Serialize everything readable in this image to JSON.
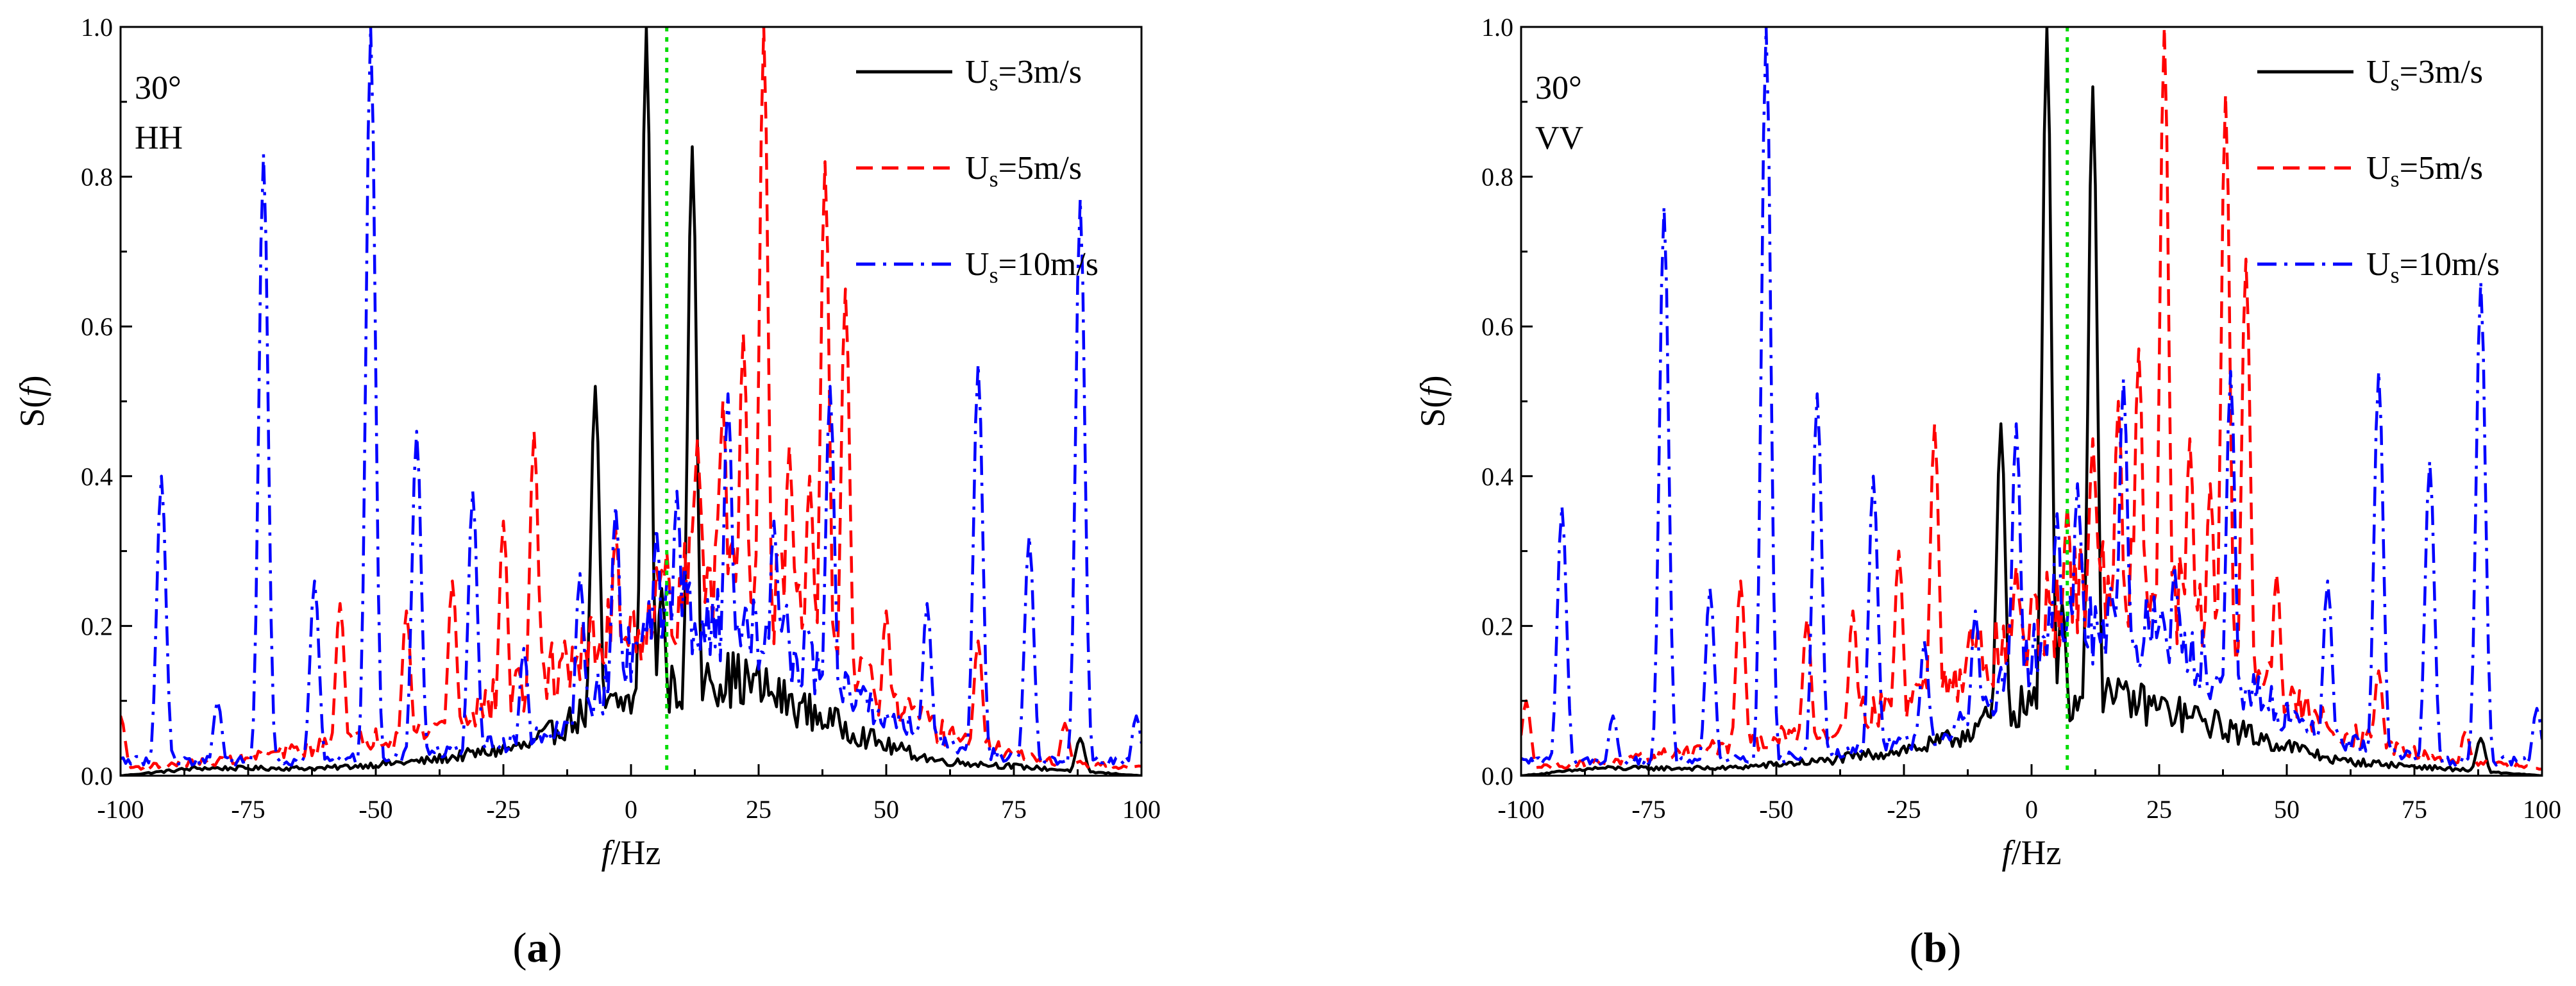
{
  "figure": {
    "panels": [
      {
        "label_open": "(",
        "label_letter": "a",
        "label_close": ")",
        "angle": "30°",
        "polarization": "HH"
      },
      {
        "label_open": "(",
        "label_letter": "b",
        "label_close": ")",
        "angle": "30°",
        "polarization": "VV"
      }
    ]
  },
  "chart_data": [
    {
      "type": "line",
      "title": "",
      "xlabel_italic": "f",
      "xlabel_rest": "/Hz",
      "ylabel_pre": "S(",
      "ylabel_italic": "f",
      "ylabel_post": ")",
      "xlim": [
        -100,
        100
      ],
      "ylim": [
        0,
        1.0
      ],
      "xticks": [
        -100,
        -75,
        -50,
        -25,
        0,
        25,
        50,
        75,
        100
      ],
      "yticks": [
        0.0,
        0.2,
        0.4,
        0.6,
        0.8,
        1.0
      ],
      "ytick_labels": [
        "0.0",
        "0.2",
        "0.4",
        "0.6",
        "0.8",
        "1.0"
      ],
      "legend_position": "top-right",
      "annotations": [
        "30°",
        "HH"
      ],
      "reference_line": {
        "x": 7,
        "color": "#00dd00",
        "style": "dotted"
      },
      "series": [
        {
          "name_main": "U",
          "name_sub": "s",
          "name_rest": "=3m/s",
          "color": "#000000",
          "style": "solid",
          "peaks": [
            [
              -7,
              0.52
            ],
            [
              3,
              1.0
            ],
            [
              6,
              0.25
            ],
            [
              12,
              0.84
            ],
            [
              15,
              0.15
            ],
            [
              88,
              0.05
            ]
          ],
          "baseline": [
            [
              -100,
              0.0
            ],
            [
              -85,
              0.01
            ],
            [
              -60,
              0.01
            ],
            [
              -40,
              0.02
            ],
            [
              -20,
              0.04
            ],
            [
              -15,
              0.06
            ],
            [
              -10,
              0.08
            ],
            [
              -5,
              0.09
            ],
            [
              0,
              0.1
            ],
            [
              10,
              0.12
            ],
            [
              20,
              0.13
            ],
            [
              25,
              0.12
            ],
            [
              30,
              0.1
            ],
            [
              40,
              0.07
            ],
            [
              50,
              0.04
            ],
            [
              60,
              0.02
            ],
            [
              70,
              0.015
            ],
            [
              80,
              0.01
            ],
            [
              100,
              0.0
            ]
          ]
        },
        {
          "name_main": "U",
          "name_sub": "s",
          "name_rest": "=5m/s",
          "color": "#ff0000",
          "style": "dashed",
          "peaks": [
            [
              -100,
              0.08
            ],
            [
              -57,
              0.23
            ],
            [
              -44,
              0.22
            ],
            [
              -35,
              0.26
            ],
            [
              -25,
              0.34
            ],
            [
              -19,
              0.46
            ],
            [
              -13,
              0.18
            ],
            [
              -3,
              0.33
            ],
            [
              7,
              0.3
            ],
            [
              13,
              0.45
            ],
            [
              18,
              0.5
            ],
            [
              22,
              0.59
            ],
            [
              26,
              1.0
            ],
            [
              31,
              0.44
            ],
            [
              35,
              0.4
            ],
            [
              38,
              0.82
            ],
            [
              42,
              0.65
            ],
            [
              50,
              0.22
            ],
            [
              68,
              0.18
            ],
            [
              85,
              0.07
            ]
          ],
          "baseline": [
            [
              -100,
              0.01
            ],
            [
              -80,
              0.02
            ],
            [
              -60,
              0.04
            ],
            [
              -40,
              0.06
            ],
            [
              -20,
              0.12
            ],
            [
              -10,
              0.16
            ],
            [
              0,
              0.2
            ],
            [
              10,
              0.25
            ],
            [
              20,
              0.28
            ],
            [
              30,
              0.24
            ],
            [
              40,
              0.16
            ],
            [
              50,
              0.1
            ],
            [
              60,
              0.06
            ],
            [
              70,
              0.04
            ],
            [
              80,
              0.02
            ],
            [
              100,
              0.01
            ]
          ]
        },
        {
          "name_main": "U",
          "name_sub": "s",
          "name_rest": "=10m/s",
          "color": "#0000ff",
          "style": "dashdot",
          "peaks": [
            [
              -92,
              0.4
            ],
            [
              -81,
              0.1
            ],
            [
              -72,
              0.83
            ],
            [
              -62,
              0.26
            ],
            [
              -51,
              1.0
            ],
            [
              -42,
              0.46
            ],
            [
              -31,
              0.38
            ],
            [
              -21,
              0.17
            ],
            [
              -10,
              0.27
            ],
            [
              -3,
              0.36
            ],
            [
              5,
              0.33
            ],
            [
              9,
              0.38
            ],
            [
              19,
              0.51
            ],
            [
              28,
              0.34
            ],
            [
              39,
              0.52
            ],
            [
              58,
              0.23
            ],
            [
              68,
              0.55
            ],
            [
              78,
              0.32
            ],
            [
              88,
              0.77
            ],
            [
              99,
              0.08
            ]
          ],
          "baseline": [
            [
              -100,
              0.02
            ],
            [
              -80,
              0.02
            ],
            [
              -60,
              0.02
            ],
            [
              -40,
              0.03
            ],
            [
              -20,
              0.05
            ],
            [
              -10,
              0.08
            ],
            [
              0,
              0.16
            ],
            [
              10,
              0.22
            ],
            [
              20,
              0.2
            ],
            [
              30,
              0.18
            ],
            [
              40,
              0.12
            ],
            [
              50,
              0.08
            ],
            [
              60,
              0.05
            ],
            [
              70,
              0.03
            ],
            [
              80,
              0.02
            ],
            [
              100,
              0.02
            ]
          ]
        }
      ]
    },
    {
      "type": "line",
      "title": "",
      "xlabel_italic": "f",
      "xlabel_rest": "/Hz",
      "ylabel_pre": "S(",
      "ylabel_italic": "f",
      "ylabel_post": ")",
      "xlim": [
        -100,
        100
      ],
      "ylim": [
        0,
        1.0
      ],
      "xticks": [
        -100,
        -75,
        -50,
        -25,
        0,
        25,
        50,
        75,
        100
      ],
      "yticks": [
        0.0,
        0.2,
        0.4,
        0.6,
        0.8,
        1.0
      ],
      "ytick_labels": [
        "0.0",
        "0.2",
        "0.4",
        "0.6",
        "0.8",
        "1.0"
      ],
      "legend_position": "top-right",
      "annotations": [
        "30°",
        "VV"
      ],
      "reference_line": {
        "x": 7,
        "color": "#00dd00",
        "style": "dotted"
      },
      "series": [
        {
          "name_main": "U",
          "name_sub": "s",
          "name_rest": "=3m/s",
          "color": "#000000",
          "style": "solid",
          "peaks": [
            [
              -6,
              0.47
            ],
            [
              3,
              1.0
            ],
            [
              6,
              0.23
            ],
            [
              12,
              0.92
            ],
            [
              15,
              0.13
            ],
            [
              88,
              0.05
            ]
          ],
          "baseline": [
            [
              -100,
              0.0
            ],
            [
              -85,
              0.01
            ],
            [
              -60,
              0.01
            ],
            [
              -40,
              0.02
            ],
            [
              -20,
              0.04
            ],
            [
              -15,
              0.05
            ],
            [
              -10,
              0.07
            ],
            [
              -5,
              0.08
            ],
            [
              0,
              0.1
            ],
            [
              10,
              0.1
            ],
            [
              20,
              0.1
            ],
            [
              25,
              0.09
            ],
            [
              30,
              0.08
            ],
            [
              40,
              0.06
            ],
            [
              50,
              0.04
            ],
            [
              60,
              0.02
            ],
            [
              70,
              0.015
            ],
            [
              80,
              0.01
            ],
            [
              100,
              0.0
            ]
          ]
        },
        {
          "name_main": "U",
          "name_sub": "s",
          "name_rest": "=5m/s",
          "color": "#ff0000",
          "style": "dashed",
          "peaks": [
            [
              -99,
              0.1
            ],
            [
              -57,
              0.26
            ],
            [
              -44,
              0.21
            ],
            [
              -35,
              0.22
            ],
            [
              -26,
              0.3
            ],
            [
              -19,
              0.47
            ],
            [
              -12,
              0.2
            ],
            [
              -3,
              0.28
            ],
            [
              7,
              0.36
            ],
            [
              12,
              0.45
            ],
            [
              17,
              0.5
            ],
            [
              21,
              0.57
            ],
            [
              26,
              1.0
            ],
            [
              31,
              0.45
            ],
            [
              35,
              0.39
            ],
            [
              38,
              0.91
            ],
            [
              42,
              0.69
            ],
            [
              48,
              0.27
            ],
            [
              68,
              0.14
            ],
            [
              85,
              0.06
            ]
          ],
          "baseline": [
            [
              -100,
              0.01
            ],
            [
              -80,
              0.02
            ],
            [
              -60,
              0.04
            ],
            [
              -40,
              0.06
            ],
            [
              -20,
              0.12
            ],
            [
              -10,
              0.16
            ],
            [
              0,
              0.2
            ],
            [
              10,
              0.24
            ],
            [
              20,
              0.27
            ],
            [
              30,
              0.23
            ],
            [
              40,
              0.16
            ],
            [
              50,
              0.1
            ],
            [
              60,
              0.06
            ],
            [
              70,
              0.04
            ],
            [
              80,
              0.02
            ],
            [
              100,
              0.01
            ]
          ]
        },
        {
          "name_main": "U",
          "name_sub": "s",
          "name_rest": "=10m/s",
          "color": "#0000ff",
          "style": "dashdot",
          "peaks": [
            [
              -92,
              0.36
            ],
            [
              -82,
              0.08
            ],
            [
              -72,
              0.76
            ],
            [
              -63,
              0.25
            ],
            [
              -52,
              1.0
            ],
            [
              -42,
              0.51
            ],
            [
              -31,
              0.4
            ],
            [
              -21,
              0.18
            ],
            [
              -11,
              0.22
            ],
            [
              -3,
              0.47
            ],
            [
              5,
              0.35
            ],
            [
              9,
              0.39
            ],
            [
              18,
              0.53
            ],
            [
              28,
              0.28
            ],
            [
              39,
              0.54
            ],
            [
              58,
              0.26
            ],
            [
              68,
              0.54
            ],
            [
              78,
              0.42
            ],
            [
              88,
              0.66
            ],
            [
              99,
              0.09
            ]
          ],
          "baseline": [
            [
              -100,
              0.02
            ],
            [
              -80,
              0.02
            ],
            [
              -60,
              0.02
            ],
            [
              -40,
              0.03
            ],
            [
              -20,
              0.05
            ],
            [
              -10,
              0.08
            ],
            [
              0,
              0.16
            ],
            [
              10,
              0.21
            ],
            [
              20,
              0.2
            ],
            [
              30,
              0.17
            ],
            [
              40,
              0.12
            ],
            [
              50,
              0.08
            ],
            [
              60,
              0.05
            ],
            [
              70,
              0.03
            ],
            [
              80,
              0.02
            ],
            [
              100,
              0.02
            ]
          ]
        }
      ]
    }
  ]
}
